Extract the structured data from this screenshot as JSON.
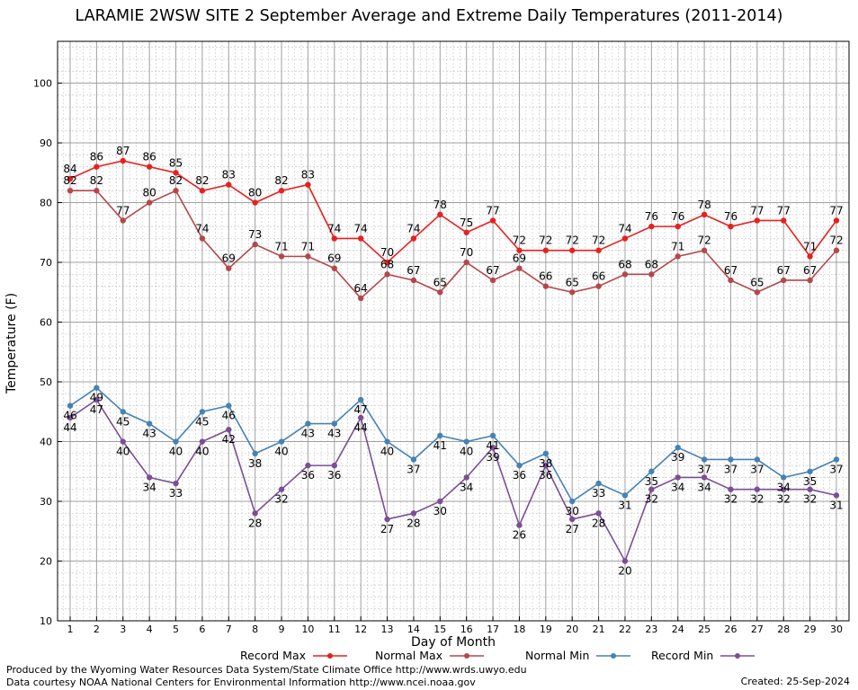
{
  "chart_data": {
    "type": "line",
    "title": "LARAMIE 2WSW SITE 2 September Average and Extreme Daily Temperatures (2011-2014)",
    "xlabel": "Day of Month",
    "ylabel": "Temperature (F)",
    "ylim": [
      10,
      107
    ],
    "yticks": [
      10,
      20,
      30,
      40,
      50,
      60,
      70,
      80,
      90,
      100
    ],
    "x": [
      1,
      2,
      3,
      4,
      5,
      6,
      7,
      8,
      9,
      10,
      11,
      12,
      13,
      14,
      15,
      16,
      17,
      18,
      19,
      20,
      21,
      22,
      23,
      24,
      25,
      26,
      27,
      28,
      29,
      30
    ],
    "grid": true,
    "legend_position": "bottom",
    "series": [
      {
        "name": "Record Max",
        "color": "#e8201f",
        "values": [
          84,
          86,
          87,
          86,
          85,
          82,
          83,
          80,
          82,
          83,
          74,
          74,
          70,
          74,
          78,
          75,
          77,
          72,
          72,
          72,
          72,
          74,
          76,
          76,
          78,
          76,
          77,
          77,
          71,
          77
        ]
      },
      {
        "name": "Normal Max",
        "color": "#b5474b",
        "values": [
          82,
          82,
          77,
          80,
          82,
          74,
          69,
          73,
          71,
          71,
          69,
          64,
          68,
          67,
          65,
          70,
          67,
          69,
          66,
          65,
          66,
          68,
          68,
          71,
          72,
          67,
          65,
          67,
          67,
          72
        ]
      },
      {
        "name": "Normal Min",
        "color": "#4682b4",
        "values": [
          46,
          49,
          45,
          43,
          40,
          45,
          46,
          38,
          40,
          43,
          43,
          47,
          40,
          37,
          41,
          40,
          41,
          36,
          38,
          30,
          33,
          31,
          35,
          39,
          37,
          37,
          37,
          34,
          35,
          37
        ]
      },
      {
        "name": "Record Min",
        "color": "#7b4e96",
        "values": [
          44,
          47,
          40,
          34,
          33,
          40,
          42,
          28,
          32,
          36,
          36,
          44,
          27,
          28,
          30,
          34,
          39,
          26,
          36,
          27,
          28,
          20,
          32,
          34,
          34,
          32,
          32,
          32,
          32,
          31
        ]
      }
    ]
  },
  "footer": {
    "line1": "Produced by the Wyoming Water Resources Data System/State Climate Office http://www.wrds.uwyo.edu",
    "line2": "Data courtesy NOAA National Centers for Environmental Information http://www.ncei.noaa.gov",
    "created": "Created:  25-Sep-2024"
  }
}
